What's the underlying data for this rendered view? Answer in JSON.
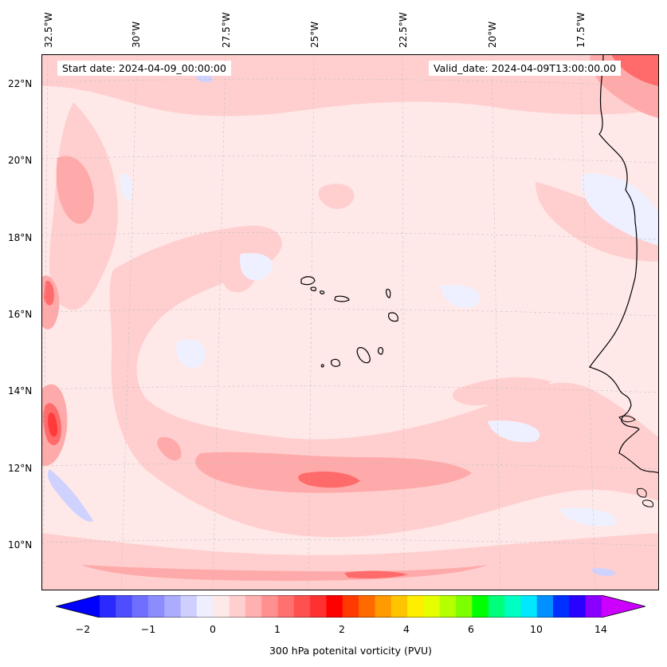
{
  "map": {
    "start_date": "Start date: 2024-04-09_00:00:00",
    "valid_date": "Valid_date: 2024-04-09T13:00:00.00",
    "lon_labels": [
      "32.5°W",
      "30°W",
      "27.5°W",
      "25°W",
      "22.5°W",
      "20°W",
      "17.5°W"
    ],
    "lat_labels": [
      "22°N",
      "20°N",
      "18°N",
      "16°N",
      "14°N",
      "12°N",
      "10°N"
    ],
    "colors": {
      "background": "#ffe8e8",
      "light_pink": "#ffcfcf",
      "mid_pink": "#ffaaaa",
      "strong_red": "#ff5a5a",
      "pale_blue": "#eef0ff",
      "light_blue": "#cfd2ff",
      "coastline": "#000000"
    }
  },
  "colorbar": {
    "tick_labels": [
      "−2",
      "−1",
      "0",
      "1",
      "2",
      "4",
      "6",
      "10",
      "14"
    ],
    "label": "300 hPa potenital vorticity (PVU)",
    "colors": [
      "#0000ff",
      "#2a2aff",
      "#4e4eff",
      "#6f6fff",
      "#8c8cff",
      "#ababff",
      "#cfcfff",
      "#eeeeff",
      "#ffe8e8",
      "#ffcfcf",
      "#ffb0b0",
      "#ff9090",
      "#ff7070",
      "#ff5050",
      "#ff3030",
      "#ff0000",
      "#ff3a00",
      "#ff6a00",
      "#ff9a00",
      "#ffc400",
      "#ffee00",
      "#e4ff00",
      "#b4ff00",
      "#7cff00",
      "#00ff00",
      "#00ff7a",
      "#00ffc0",
      "#00e8ff",
      "#0090ff",
      "#0030ff",
      "#2a00ff",
      "#8a00ff",
      "#cc00ff"
    ]
  }
}
